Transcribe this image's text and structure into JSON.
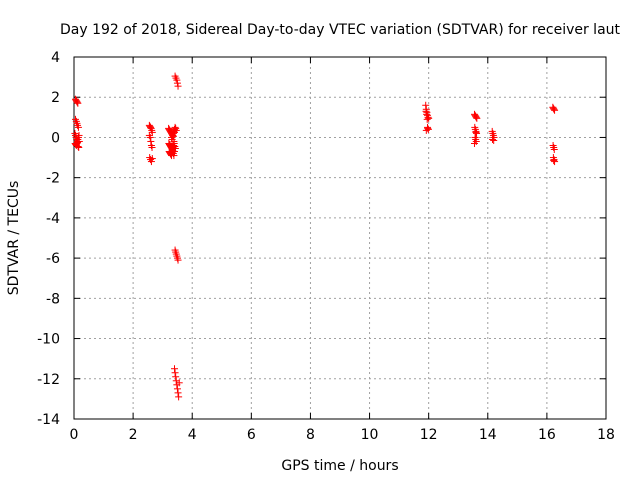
{
  "chart_data": {
    "type": "scatter",
    "title": "Day 192 of 2018, Sidereal Day-to-day VTEC variation (SDTVAR) for receiver laut",
    "xlabel": "GPS time / hours",
    "ylabel": "SDTVAR / TECUs",
    "xlim": [
      0,
      18
    ],
    "ylim": [
      -14,
      4
    ],
    "xticks": [
      0,
      2,
      4,
      6,
      8,
      10,
      12,
      14,
      16,
      18
    ],
    "yticks": [
      -14,
      -12,
      -10,
      -8,
      -6,
      -4,
      -2,
      0,
      2,
      4
    ],
    "grid": true,
    "marker": "plus",
    "series": [
      {
        "name": "SDTVAR",
        "color": "#ff0000",
        "x": [
          0.05,
          0.07,
          0.09,
          0.11,
          0.13,
          0.05,
          0.08,
          0.1,
          0.12,
          0.15,
          0.03,
          0.05,
          0.07,
          0.09,
          0.11,
          0.13,
          0.15,
          0.17,
          0.04,
          0.06,
          0.08,
          0.1,
          0.12,
          0.14,
          0.16,
          0.18,
          2.55,
          2.57,
          2.59,
          2.61,
          2.63,
          2.65,
          2.55,
          2.58,
          2.6,
          2.62,
          2.64,
          2.56,
          2.59,
          2.62,
          2.65,
          3.2,
          3.22,
          3.24,
          3.26,
          3.28,
          3.3,
          3.32,
          3.34,
          3.36,
          3.38,
          3.4,
          3.42,
          3.44,
          3.46,
          3.21,
          3.23,
          3.25,
          3.27,
          3.29,
          3.31,
          3.33,
          3.35,
          3.37,
          3.39,
          3.41,
          3.43,
          3.22,
          3.24,
          3.26,
          3.28,
          3.3,
          3.32,
          3.34,
          3.36,
          3.38,
          3.4,
          3.3,
          3.32,
          3.34,
          3.36,
          3.38,
          3.4,
          3.42,
          3.45,
          3.48,
          3.5,
          3.52,
          3.42,
          3.44,
          3.46,
          3.48,
          3.5,
          3.52,
          3.4,
          3.42,
          3.44,
          3.46,
          3.48,
          3.5,
          3.52,
          3.54,
          3.56,
          11.9,
          11.92,
          11.94,
          11.96,
          11.98,
          12.0,
          11.91,
          11.93,
          11.95,
          11.97,
          11.99,
          11.92,
          11.96,
          13.55,
          13.57,
          13.59,
          13.61,
          13.63,
          13.56,
          13.58,
          13.6,
          13.62,
          13.57,
          13.59,
          13.61,
          13.55,
          13.6,
          14.15,
          14.17,
          14.19,
          14.21,
          14.16,
          14.2,
          16.2,
          16.22,
          16.24,
          16.26,
          16.21,
          16.23,
          16.25,
          16.22,
          16.24,
          16.26,
          16.23
        ],
        "y": [
          1.9,
          1.85,
          1.8,
          1.75,
          1.7,
          0.9,
          0.8,
          0.7,
          0.6,
          0.5,
          0.2,
          0.1,
          0.0,
          -0.1,
          -0.2,
          -0.1,
          0.0,
          0.1,
          -0.3,
          -0.35,
          -0.4,
          -0.3,
          -0.25,
          -0.45,
          -0.5,
          -0.2,
          0.6,
          0.55,
          0.5,
          0.45,
          0.35,
          0.25,
          0.1,
          0.0,
          -0.2,
          -0.4,
          -0.5,
          -1.0,
          -1.1,
          -1.2,
          -1.05,
          0.45,
          0.4,
          0.35,
          0.3,
          0.25,
          0.2,
          0.15,
          0.1,
          0.05,
          0.3,
          0.4,
          0.5,
          0.45,
          0.35,
          -0.3,
          -0.35,
          -0.4,
          -0.45,
          -0.5,
          -0.55,
          -0.6,
          -0.5,
          -0.4,
          -0.3,
          -0.45,
          -0.55,
          -0.7,
          -0.75,
          -0.8,
          -0.85,
          -0.9,
          -0.75,
          -0.65,
          -0.8,
          -0.9,
          -0.7,
          0.0,
          -0.1,
          0.1,
          0.2,
          -0.2,
          0.25,
          3.05,
          2.95,
          2.85,
          2.7,
          2.55,
          -5.6,
          -5.7,
          -5.8,
          -5.9,
          -6.0,
          -6.1,
          -11.5,
          -11.7,
          -11.9,
          -12.1,
          -12.3,
          -12.5,
          -12.7,
          -12.9,
          -12.2,
          1.6,
          1.4,
          1.25,
          1.1,
          1.0,
          0.95,
          1.3,
          1.15,
          0.9,
          0.45,
          0.4,
          0.35,
          0.5,
          1.15,
          1.1,
          1.05,
          1.0,
          0.95,
          0.5,
          0.4,
          0.3,
          0.2,
          0.0,
          -0.1,
          -0.2,
          -0.3,
          0.25,
          0.3,
          0.2,
          0.1,
          0.0,
          -0.1,
          -0.15,
          1.5,
          1.45,
          1.4,
          1.35,
          -0.4,
          -0.5,
          -0.6,
          -1.0,
          -1.1,
          -1.2,
          -1.15
        ]
      }
    ]
  }
}
